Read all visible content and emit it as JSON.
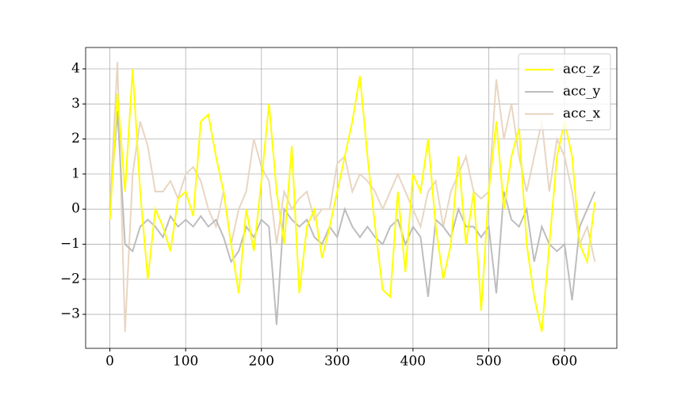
{
  "chart_data": {
    "type": "line",
    "x": [
      0,
      10,
      20,
      30,
      40,
      50,
      60,
      70,
      80,
      90,
      100,
      110,
      120,
      130,
      140,
      150,
      160,
      170,
      180,
      190,
      200,
      210,
      220,
      230,
      240,
      250,
      260,
      270,
      280,
      290,
      300,
      310,
      320,
      330,
      340,
      350,
      360,
      370,
      380,
      390,
      400,
      410,
      420,
      430,
      440,
      450,
      460,
      470,
      480,
      490,
      500,
      510,
      520,
      530,
      540,
      550,
      560,
      570,
      580,
      590,
      600,
      610,
      620,
      630,
      640
    ],
    "series": [
      {
        "name": "acc_z",
        "color": "#ffff00",
        "values": [
          -0.3,
          3.3,
          0.5,
          4.0,
          0.5,
          -2.0,
          0.0,
          -0.5,
          -1.2,
          0.3,
          0.5,
          -0.2,
          2.5,
          2.7,
          1.5,
          0.5,
          -1.0,
          -2.4,
          0.0,
          -1.2,
          0.8,
          3.0,
          0.5,
          -1.0,
          1.8,
          -2.4,
          -0.5,
          0.0,
          -1.4,
          -0.5,
          0.5,
          1.5,
          2.5,
          3.8,
          1.5,
          -0.5,
          -2.3,
          -2.5,
          0.5,
          -1.8,
          1.0,
          0.5,
          2.0,
          -0.5,
          -2.0,
          -1.0,
          1.5,
          -1.0,
          0.5,
          -2.9,
          0.5,
          2.5,
          0.0,
          1.5,
          2.3,
          -1.0,
          -2.5,
          -3.5,
          -1.0,
          1.5,
          2.5,
          1.5,
          -1.0,
          -1.5,
          0.2
        ]
      },
      {
        "name": "acc_y",
        "color": "#bdbdbd",
        "values": [
          0.0,
          2.8,
          -1.0,
          -1.2,
          -0.5,
          -0.3,
          -0.5,
          -0.8,
          -0.2,
          -0.5,
          -0.3,
          -0.5,
          -0.2,
          -0.5,
          -0.3,
          -0.8,
          -1.5,
          -1.2,
          -0.5,
          -0.8,
          -0.3,
          -0.5,
          -3.3,
          0.0,
          -0.3,
          -0.5,
          -0.3,
          -0.8,
          -1.0,
          -0.5,
          -0.8,
          0.0,
          -0.5,
          -0.8,
          -0.5,
          -0.8,
          -1.0,
          -0.5,
          -0.3,
          -1.0,
          -0.5,
          -0.8,
          -2.5,
          -0.3,
          -0.5,
          -0.8,
          0.0,
          -0.5,
          -0.5,
          -0.8,
          -0.5,
          -2.4,
          0.5,
          -0.3,
          -0.5,
          0.0,
          -1.5,
          -0.5,
          -1.0,
          -1.2,
          -1.0,
          -2.6,
          -0.5,
          0.0,
          0.5
        ]
      },
      {
        "name": "acc_x",
        "color": "#e8d6c2",
        "values": [
          0.0,
          4.2,
          -3.5,
          1.0,
          2.5,
          1.8,
          0.5,
          0.5,
          0.8,
          0.3,
          1.0,
          1.2,
          0.8,
          0.0,
          -0.5,
          0.5,
          -1.0,
          0.0,
          0.5,
          2.0,
          1.2,
          0.8,
          -1.0,
          0.5,
          0.0,
          0.3,
          0.5,
          -0.3,
          0.0,
          0.0,
          1.3,
          1.5,
          0.5,
          1.0,
          0.8,
          0.5,
          0.0,
          0.5,
          1.0,
          0.5,
          0.0,
          -0.5,
          0.5,
          0.8,
          -0.5,
          0.5,
          1.0,
          1.5,
          0.5,
          0.3,
          0.5,
          3.7,
          2.0,
          3.0,
          1.5,
          0.5,
          1.5,
          2.5,
          0.5,
          2.0,
          1.5,
          0.5,
          -1.0,
          -0.5,
          -1.5
        ]
      }
    ],
    "xlim": [
      -32,
      669
    ],
    "ylim": [
      -3.97,
      4.61
    ],
    "xticks": [
      0,
      100,
      200,
      300,
      400,
      500,
      600
    ],
    "yticks": [
      {
        "value": -3,
        "label": "−3"
      },
      {
        "value": -2,
        "label": "−2"
      },
      {
        "value": -1,
        "label": "−1"
      },
      0,
      1,
      2,
      3,
      4
    ],
    "grid": true,
    "legend": "upper right"
  }
}
